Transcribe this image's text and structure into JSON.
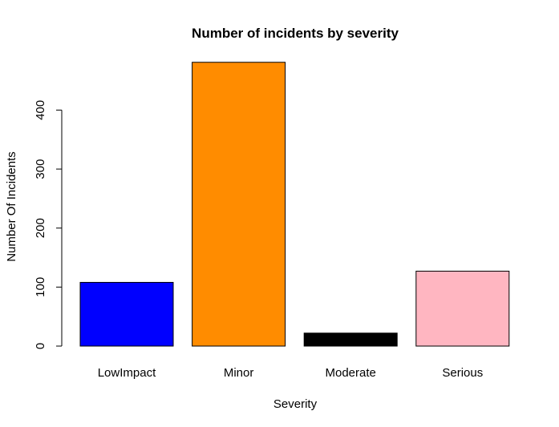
{
  "chart_data": {
    "type": "bar",
    "title": "Number of incidents by severity",
    "xlabel": "Severity",
    "ylabel": "Number Of Incidents",
    "categories": [
      "LowImpact",
      "Minor",
      "Moderate",
      "Serious"
    ],
    "values": [
      108,
      481,
      22,
      127
    ],
    "colors": [
      "#0000ff",
      "#ff8c00",
      "#000000",
      "#ffb6c1"
    ],
    "yticks": [
      0,
      100,
      200,
      300,
      400
    ],
    "ylim": [
      0,
      481
    ],
    "grid": false,
    "legend": "none"
  }
}
